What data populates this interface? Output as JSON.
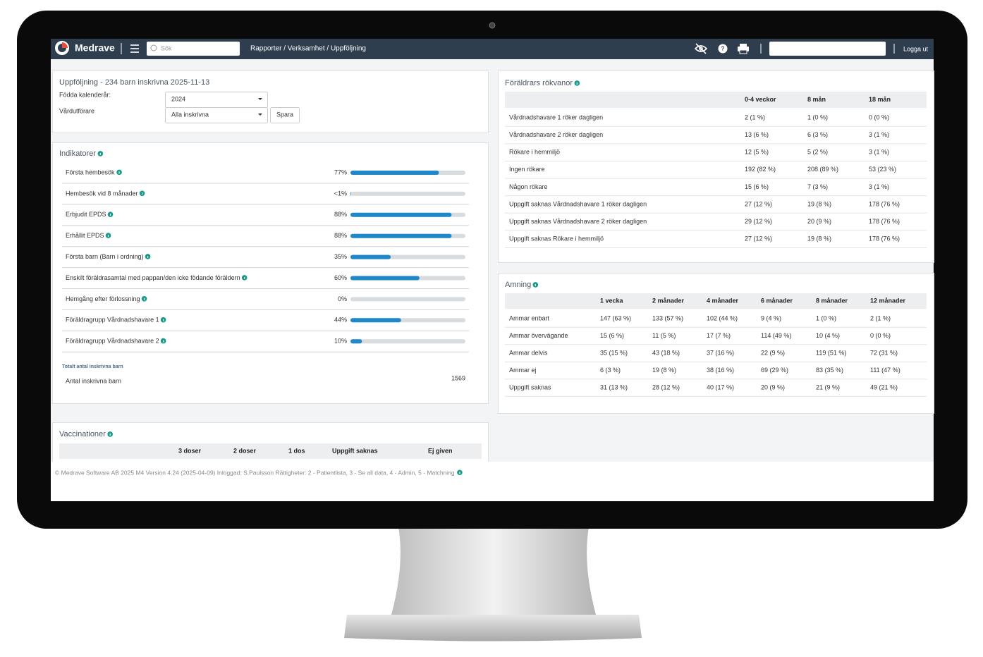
{
  "nav": {
    "brand": "Medrave",
    "search_placeholder": "Sök",
    "breadcrumb": "Rapporter / Verksamhet / Uppföljning",
    "logout": "Logga ut"
  },
  "filter": {
    "title": "Uppföljning - 234 barn inskrivna 2025-11-13",
    "birth_year_label": "Födda kalenderår:",
    "birth_year": "2024",
    "provider_label": "Vårdutförare",
    "provider": "Alla inskrivna",
    "save": "Spara"
  },
  "indicators": {
    "title": "Indikatorer",
    "items": [
      {
        "label": "Första hembesök",
        "value": 77,
        "display": "77%"
      },
      {
        "label": "Hembesök vid 8 månader",
        "value": 0.5,
        "display": "<1%"
      },
      {
        "label": "Erbjudit EPDS",
        "value": 88,
        "display": "88%"
      },
      {
        "label": "Erhållit EPDS",
        "value": 88,
        "display": "88%"
      },
      {
        "label": "Första barn (Barn i ordning)",
        "value": 35,
        "display": "35%"
      },
      {
        "label": "Enskilt föräldrasamtal med pappan/den icke födande föräldern",
        "value": 60,
        "display": "60%"
      },
      {
        "label": "Hemgång efter förlossning",
        "value": 0,
        "display": "0%"
      },
      {
        "label": "Föräldragrupp Vårdnadshavare 1",
        "value": 44,
        "display": "44%"
      },
      {
        "label": "Föräldragrupp Vårdnadshavare 2",
        "value": 10,
        "display": "10%"
      }
    ],
    "total_heading": "Totalt antal inskrivna barn",
    "total_label": "Antal inskrivna barn",
    "total": 1569
  },
  "vaccinations": {
    "title": "Vaccinationer",
    "columns": [
      "3 doser",
      "2 doser",
      "1 dos",
      "Uppgift saknas",
      "Ej given"
    ]
  },
  "smoking": {
    "title": "Föräldrars rökvanor",
    "columns": [
      "0-4 veckor",
      "8 mån",
      "18 mån"
    ],
    "rows": [
      [
        "Vårdnadshavare 1 röker dagligen",
        "2 (1 %)",
        "1 (0 %)",
        "0 (0 %)"
      ],
      [
        "Vårdnadshavare 2 röker dagligen",
        "13 (6 %)",
        "6 (3 %)",
        "3 (1 %)"
      ],
      [
        "Rökare i hemmiljö",
        "12 (5 %)",
        "5 (2 %)",
        "3 (1 %)"
      ],
      [
        "Ingen rökare",
        "192 (82 %)",
        "208 (89 %)",
        "53 (23 %)"
      ],
      [
        "Någon rökare",
        "15 (6 %)",
        "7 (3 %)",
        "3 (1 %)"
      ],
      [
        "Uppgift saknas Vårdnadshavare 1 röker dagligen",
        "27 (12 %)",
        "19 (8 %)",
        "178 (76 %)"
      ],
      [
        "Uppgift saknas Vårdnadshavare 2 röker dagligen",
        "29 (12 %)",
        "20 (9 %)",
        "178 (76 %)"
      ],
      [
        "Uppgift saknas Rökare i hemmiljö",
        "27 (12 %)",
        "19 (8 %)",
        "178 (76 %)"
      ]
    ]
  },
  "breastfeeding": {
    "title": "Amning",
    "columns": [
      "1 vecka",
      "2 månader",
      "4 månader",
      "6 månader",
      "8 månader",
      "12 månader"
    ],
    "rows": [
      [
        "Ammar enbart",
        "147 (63 %)",
        "133 (57 %)",
        "102 (44 %)",
        "9 (4 %)",
        "1 (0 %)",
        "2 (1 %)"
      ],
      [
        "Ammar övervägande",
        "15 (6 %)",
        "11 (5 %)",
        "17 (7 %)",
        "114 (49 %)",
        "10 (4 %)",
        "0 (0 %)"
      ],
      [
        "Ammar delvis",
        "35 (15 %)",
        "43 (18 %)",
        "37 (16 %)",
        "22 (9 %)",
        "119 (51 %)",
        "72 (31 %)"
      ],
      [
        "Ammar ej",
        "6 (3 %)",
        "19 (8 %)",
        "38 (16 %)",
        "69 (29 %)",
        "83 (35 %)",
        "111 (47 %)"
      ],
      [
        "Uppgift saknas",
        "31 (13 %)",
        "28 (12 %)",
        "40 (17 %)",
        "20 (9 %)",
        "21 (9 %)",
        "49 (21 %)"
      ]
    ]
  },
  "footer": "© Medrave Software AB 2025 M4 Version 4.24 (2025-04-09) Inloggad: S.Paulsson Rättigheter: 2 - Patientlista, 3 - Se all data, 4 - Admin, 5 - Matchning"
}
